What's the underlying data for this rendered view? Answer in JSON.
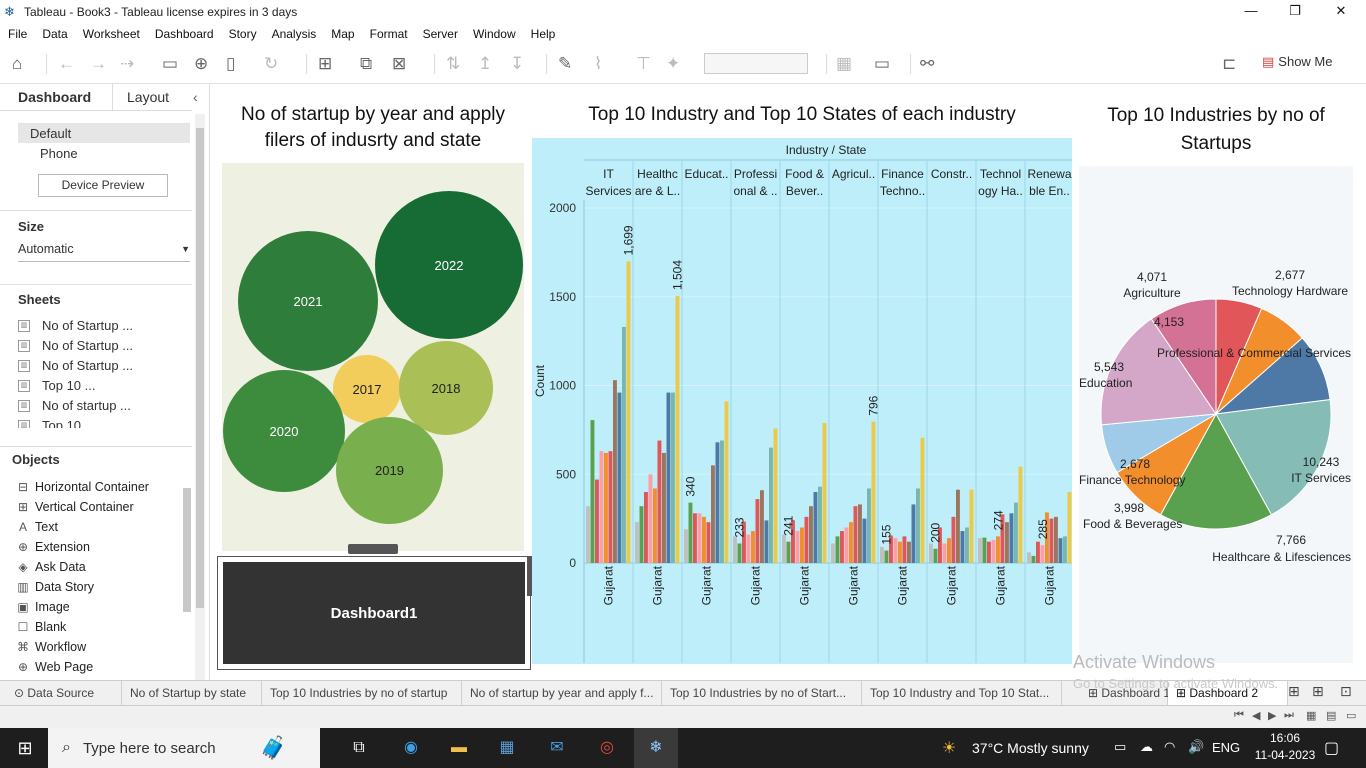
{
  "window": {
    "title": "Tableau - Book3 - Tableau license expires in 3 days",
    "minimize": "—",
    "restore": "❐",
    "close": "✕"
  },
  "menu": [
    "File",
    "Data",
    "Worksheet",
    "Dashboard",
    "Story",
    "Analysis",
    "Map",
    "Format",
    "Server",
    "Window",
    "Help"
  ],
  "toolbar": {
    "show_me": "Show Me"
  },
  "sidebar": {
    "tab_dashboard": "Dashboard",
    "tab_layout": "Layout",
    "devices": [
      "Default",
      "Phone"
    ],
    "device_preview": "Device Preview",
    "size_title": "Size",
    "size_value": "Automatic",
    "sheets_title": "Sheets",
    "sheets": [
      "No of Startup ...",
      "No of Startup ...",
      "No of Startup ...",
      "Top 10 ...",
      "No of startup ...",
      "Top 10 ..."
    ],
    "objects_title": "Objects",
    "objects": [
      {
        "icon": "⊟",
        "label": "Horizontal Container"
      },
      {
        "icon": "⊞",
        "label": "Vertical Container"
      },
      {
        "icon": "A",
        "label": "Text"
      },
      {
        "icon": "⊕",
        "label": "Extension"
      },
      {
        "icon": "◈",
        "label": "Ask Data"
      },
      {
        "icon": "▥",
        "label": "Data Story"
      },
      {
        "icon": "▣",
        "label": "Image"
      },
      {
        "icon": "☐",
        "label": "Blank"
      },
      {
        "icon": "⌘",
        "label": "Workflow"
      },
      {
        "icon": "⊕",
        "label": "Web Page"
      }
    ]
  },
  "panels": {
    "bubble_title": "No of startup by year and apply filers of indusrty and state",
    "bar_title": "Top 10 Industry and Top 10 States of each industry",
    "pie_title": "Top 10 Industries by no of Startups",
    "dashboard_label": "Dashboard1"
  },
  "bubbles": [
    {
      "label": "2021",
      "color": "#2e7d3a"
    },
    {
      "label": "2022",
      "color": "#176b35"
    },
    {
      "label": "2017",
      "color": "#f2cd5c"
    },
    {
      "label": "2018",
      "color": "#aabf55"
    },
    {
      "label": "2020",
      "color": "#3d8b3d"
    },
    {
      "label": "2019",
      "color": "#7aaf4e"
    }
  ],
  "chart_data": [
    {
      "type": "bar",
      "title": "Top 10 Industry and Top 10 States of each industry",
      "header": "Industry / State",
      "ylabel": "Count",
      "ylim": [
        0,
        2000
      ],
      "yticks": [
        0,
        500,
        1000,
        1500,
        2000
      ],
      "categories": [
        {
          "label": [
            "IT",
            "Services"
          ],
          "state": "Gujarat",
          "label_value": "1,699",
          "labeled_index": 9,
          "values": [
            320,
            805,
            470,
            630,
            620,
            630,
            1030,
            960,
            1330,
            1699
          ]
        },
        {
          "label": [
            "Healthc",
            "are & L.."
          ],
          "state": "Gujarat",
          "label_value": "1,504",
          "labeled_index": 9,
          "values": [
            230,
            320,
            400,
            500,
            420,
            690,
            620,
            960,
            960,
            1504
          ]
        },
        {
          "label": [
            "Educat.."
          ],
          "state": "Gujarat",
          "label_value": "340",
          "labeled_index": 1,
          "values": [
            190,
            340,
            280,
            280,
            260,
            230,
            550,
            680,
            690,
            911
          ]
        },
        {
          "label": [
            "Professi",
            "onal & .."
          ],
          "state": "Gujarat",
          "label_value": "233",
          "labeled_index": 1,
          "values": [
            150,
            110,
            233,
            160,
            180,
            360,
            410,
            240,
            650,
            758
          ]
        },
        {
          "label": [
            "Food &",
            "Bever.."
          ],
          "state": "Gujarat",
          "label_value": "241",
          "labeled_index": 1,
          "values": [
            160,
            120,
            241,
            180,
            200,
            260,
            320,
            400,
            430,
            789
          ]
        },
        {
          "label": [
            "Agricul.."
          ],
          "state": "Gujarat",
          "label_value": "796",
          "labeled_index": 9,
          "values": [
            110,
            150,
            180,
            200,
            230,
            320,
            330,
            250,
            420,
            796
          ]
        },
        {
          "label": [
            "Finance",
            "Techno.."
          ],
          "state": "Gujarat",
          "label_value": "155",
          "labeled_index": 1,
          "values": [
            90,
            70,
            155,
            140,
            120,
            150,
            120,
            330,
            420,
            705
          ]
        },
        {
          "label": [
            "Constr.."
          ],
          "state": "Gujarat",
          "label_value": "200",
          "labeled_index": 1,
          "values": [
            110,
            80,
            200,
            110,
            140,
            260,
            413,
            180,
            200,
            413
          ]
        },
        {
          "label": [
            "Technol",
            "ogy Ha.."
          ],
          "state": "Gujarat",
          "label_value": "274",
          "labeled_index": 4,
          "values": [
            140,
            143,
            120,
            130,
            150,
            274,
            230,
            280,
            340,
            543
          ]
        },
        {
          "label": [
            "Renewa",
            "ble En.."
          ],
          "state": "Gujarat",
          "label_value": "285",
          "labeled_index": 3,
          "values": [
            60,
            40,
            120,
            100,
            285,
            250,
            260,
            140,
            150,
            400
          ]
        }
      ],
      "series_colors": [
        "#c0c0c0",
        "#59a14f",
        "#e15759",
        "#ff9da7",
        "#f28e2b",
        "#e15759",
        "#9c755f",
        "#4e79a7",
        "#76b7b2",
        "#edc948"
      ]
    },
    {
      "type": "pie",
      "title": "Top 10 Industries by no of Startups",
      "slices": [
        {
          "label": "Technology Hardware",
          "value": 2677,
          "display": "2,677",
          "color": "#e15759"
        },
        {
          "label": "Professional & Commercial Services",
          "value": 4153,
          "display": "4,153",
          "color": "#f28e2b"
        },
        {
          "label": "IT Services",
          "value": 10243,
          "display": "10,243",
          "color": "#4e79a7",
          "extra": true
        },
        {
          "label": "IT Services",
          "value": 10243,
          "display": "10,243",
          "color": "#86bcb6"
        },
        {
          "label": "Healthcare & Lifesciences",
          "value": 7766,
          "display": "7,766",
          "color": "#59a14f"
        },
        {
          "label": "Food & Beverages",
          "value": 3998,
          "display": "3,998",
          "color": "#f28e2b"
        },
        {
          "label": "Finance Technology",
          "value": 2678,
          "display": "2,678",
          "color": "#a0cbe8"
        },
        {
          "label": "Education",
          "value": 5543,
          "display": "5,543",
          "color": "#d4a6c8"
        },
        {
          "label": "Agriculture",
          "value": 4071,
          "display": "4,071",
          "color": "#d37295"
        }
      ]
    }
  ],
  "pie_labels": [
    {
      "value": "4,071",
      "name": "Agriculture"
    },
    {
      "value": "2,677",
      "name": "Technology Hardware"
    },
    {
      "value": "4,153",
      "name": "Professional & Commercial Services"
    },
    {
      "value": "5,543",
      "name": "Education"
    },
    {
      "value": "10,243",
      "name": "IT Services"
    },
    {
      "value": "2,678",
      "name": "Finance Technology"
    },
    {
      "value": "3,998",
      "name": "Food & Beverages"
    },
    {
      "value": "7,766",
      "name": "Healthcare & Lifesciences"
    }
  ],
  "bottom_tabs": [
    {
      "label": "Data Source",
      "active": false
    },
    {
      "label": "No of Startup by state",
      "active": false
    },
    {
      "label": "Top 10 Industries by no of startup",
      "active": false
    },
    {
      "label": "No of startup by year and apply f...",
      "active": false
    },
    {
      "label": "Top 10 Industries by no of Start...",
      "active": false
    },
    {
      "label": "Top 10 Industry and Top 10 Stat...",
      "active": false
    },
    {
      "label": "Dashboard 1",
      "active": false
    },
    {
      "label": "Dashboard 2",
      "active": true
    }
  ],
  "watermark": {
    "line1": "Activate Windows",
    "line2": "Go to Settings to activate Windows."
  },
  "taskbar": {
    "search_placeholder": "Type here to search",
    "weather": "37°C  Mostly sunny",
    "lang": "ENG",
    "time": "16:06",
    "date": "11-04-2023"
  }
}
